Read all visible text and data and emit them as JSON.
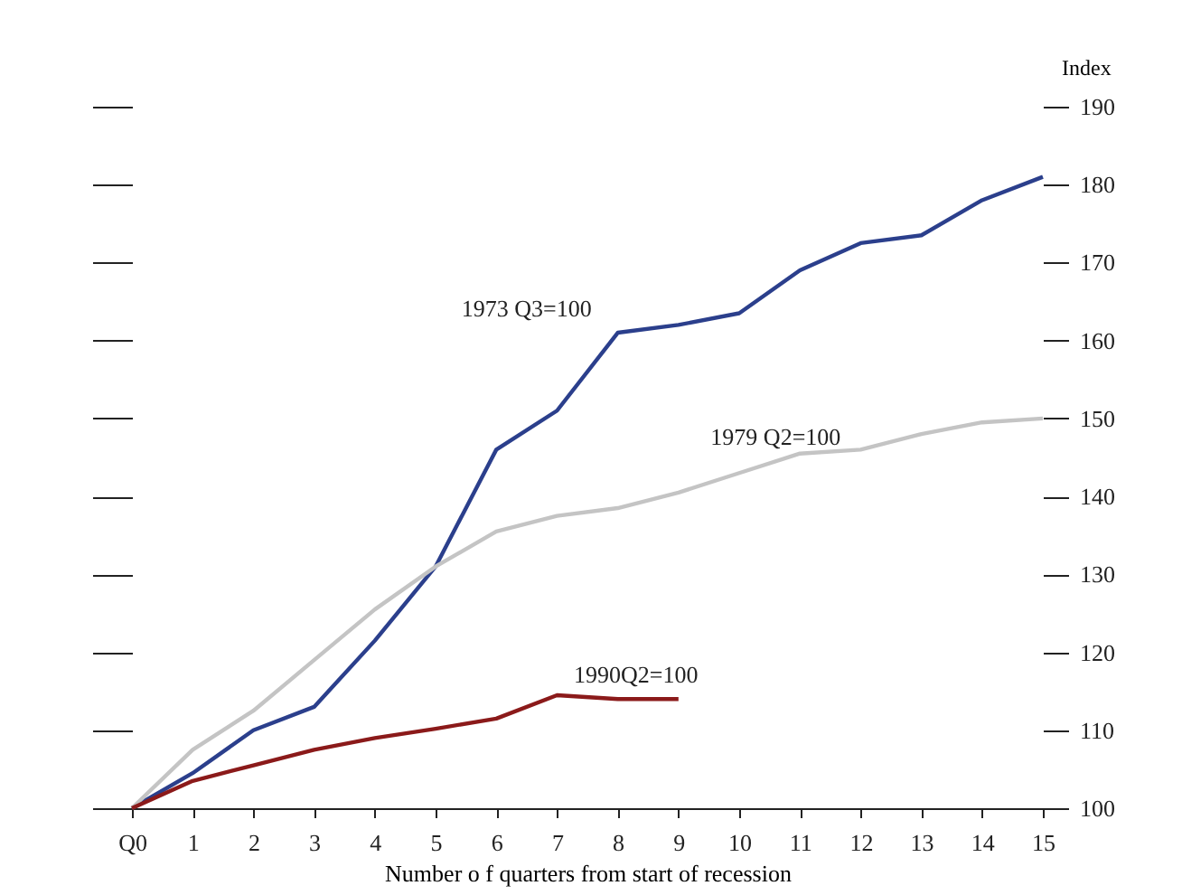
{
  "chart_data": {
    "type": "line",
    "xlabel": "Number o f quarters from start of recession",
    "ylabel": "Index",
    "x": [
      0,
      1,
      2,
      3,
      4,
      5,
      6,
      7,
      8,
      9,
      10,
      11,
      12,
      13,
      14,
      15
    ],
    "xlim": [
      0,
      15
    ],
    "xticks": [
      {
        "value": 0,
        "label": "Q0"
      },
      1,
      2,
      3,
      4,
      5,
      6,
      7,
      8,
      9,
      10,
      11,
      12,
      13,
      14,
      15
    ],
    "ylim": [
      100,
      190
    ],
    "yticks": [
      100,
      110,
      120,
      130,
      140,
      150,
      160,
      170,
      180,
      190
    ],
    "grid": false,
    "legend": false,
    "marker": "none",
    "line_style": "solid",
    "series": [
      {
        "name": "1973 Q3=100",
        "color": "#2b3f8c",
        "values": [
          100,
          104.5,
          110,
          113,
          121.5,
          131,
          146,
          151,
          161,
          162,
          163.5,
          169,
          172.5,
          173.5,
          178,
          181
        ]
      },
      {
        "name": "1979 Q2=100",
        "color": "#c4c4c4",
        "values": [
          100,
          107.5,
          112.5,
          119,
          125.5,
          131,
          135.5,
          137.5,
          138.5,
          140.5,
          143,
          145.5,
          146,
          148,
          149.5,
          150
        ]
      },
      {
        "name": "1990Q2=100",
        "color": "#8b1a1a",
        "values": [
          100,
          103.5,
          105.5,
          107.5,
          109,
          110.2,
          111.5,
          114.5,
          114,
          114,
          null,
          null,
          null,
          null,
          null,
          null
        ]
      }
    ]
  }
}
